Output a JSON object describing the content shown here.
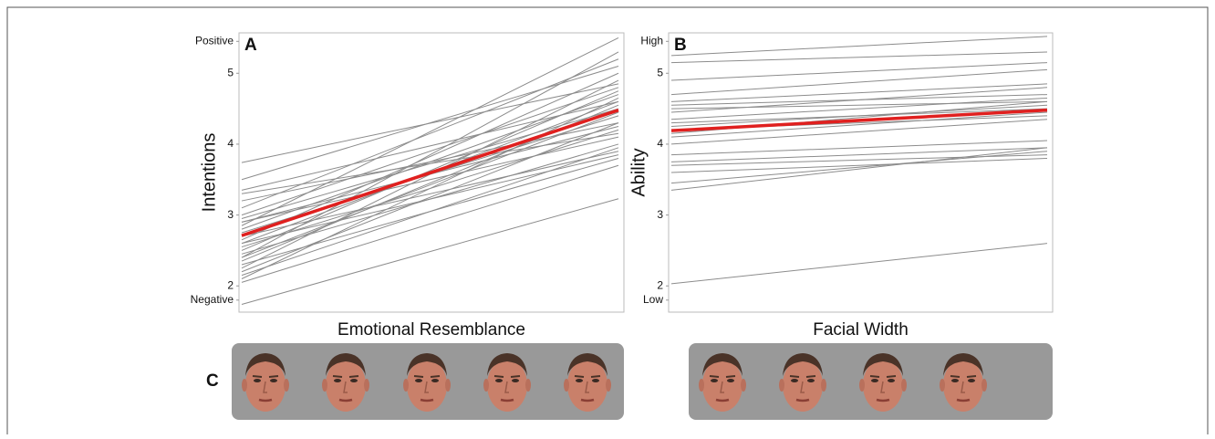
{
  "chart_data": [
    {
      "type": "line",
      "panel_label": "A",
      "y_label": "Intentions",
      "x_label": "Emotional Resemblance",
      "categories": [
        null,
        null
      ],
      "ylim": [
        1.63,
        5.57
      ],
      "yticks": [
        {
          "value": 1.8,
          "label": "Negative"
        },
        2,
        3,
        4,
        5,
        {
          "value": 5.45,
          "label": "Positive"
        }
      ],
      "line_color": "#8c8c8c",
      "series": [
        {
          "values": [
            3.74,
            4.85
          ]
        },
        {
          "values": [
            3.5,
            5.1
          ]
        },
        {
          "values": [
            3.35,
            4.6
          ]
        },
        {
          "values": [
            3.2,
            4.3
          ]
        },
        {
          "values": [
            3.1,
            5.2
          ]
        },
        {
          "values": [
            3.0,
            4.8
          ]
        },
        {
          "values": [
            2.95,
            4.5
          ]
        },
        {
          "values": [
            2.9,
            4.1
          ]
        },
        {
          "values": [
            2.85,
            5.5
          ]
        },
        {
          "values": [
            2.8,
            4.7
          ]
        },
        {
          "values": [
            2.75,
            4.4
          ]
        },
        {
          "values": [
            2.7,
            3.9
          ]
        },
        {
          "values": [
            2.65,
            5.0
          ]
        },
        {
          "values": [
            2.6,
            4.6
          ]
        },
        {
          "values": [
            2.55,
            4.2
          ]
        },
        {
          "values": [
            2.5,
            4.75
          ]
        },
        {
          "values": [
            2.45,
            4.0
          ]
        },
        {
          "values": [
            2.4,
            5.3
          ]
        },
        {
          "values": [
            2.35,
            4.55
          ]
        },
        {
          "values": [
            2.3,
            3.8
          ]
        },
        {
          "values": [
            2.25,
            4.9
          ]
        },
        {
          "values": [
            2.2,
            4.3
          ]
        },
        {
          "values": [
            2.15,
            3.95
          ]
        },
        {
          "values": [
            2.1,
            4.65
          ]
        },
        {
          "values": [
            2.05,
            3.7
          ]
        },
        {
          "values": [
            2.4,
            4.45
          ]
        },
        {
          "values": [
            2.6,
            3.85
          ]
        },
        {
          "values": [
            2.9,
            4.25
          ]
        },
        {
          "values": [
            1.74,
            3.23
          ]
        },
        {
          "values": [
            3.3,
            4.15
          ]
        },
        {
          "values": [
            2.71,
            4.48
          ],
          "color": "#e0201f"
        }
      ]
    },
    {
      "type": "line",
      "panel_label": "B",
      "y_label": "Ability",
      "x_label": "Facial Width",
      "categories": [
        null,
        null
      ],
      "ylim": [
        1.63,
        5.57
      ],
      "yticks": [
        {
          "value": 1.8,
          "label": "Low"
        },
        2,
        3,
        4,
        5,
        {
          "value": 5.45,
          "label": "High"
        }
      ],
      "line_color": "#8c8c8c",
      "series": [
        {
          "values": [
            5.25,
            5.52
          ]
        },
        {
          "values": [
            5.15,
            5.3
          ]
        },
        {
          "values": [
            4.7,
            5.05
          ]
        },
        {
          "values": [
            4.6,
            4.85
          ]
        },
        {
          "values": [
            4.55,
            4.7
          ]
        },
        {
          "values": [
            4.5,
            4.6
          ]
        },
        {
          "values": [
            4.45,
            4.8
          ]
        },
        {
          "values": [
            4.35,
            4.65
          ]
        },
        {
          "values": [
            4.3,
            4.5
          ]
        },
        {
          "values": [
            4.25,
            4.55
          ]
        },
        {
          "values": [
            4.2,
            4.4
          ]
        },
        {
          "values": [
            4.15,
            4.6
          ]
        },
        {
          "values": [
            4.1,
            4.45
          ]
        },
        {
          "values": [
            3.85,
            4.05
          ]
        },
        {
          "values": [
            3.75,
            3.95
          ]
        },
        {
          "values": [
            3.7,
            3.85
          ]
        },
        {
          "values": [
            3.6,
            3.8
          ]
        },
        {
          "values": [
            3.45,
            3.9
          ]
        },
        {
          "values": [
            3.35,
            3.95
          ]
        },
        {
          "values": [
            2.03,
            2.6
          ]
        },
        {
          "values": [
            4.9,
            5.15
          ]
        },
        {
          "values": [
            4.0,
            4.35
          ]
        },
        {
          "values": [
            4.19,
            4.48
          ],
          "color": "#e0201f"
        }
      ]
    }
  ],
  "panel_c_label": "C"
}
